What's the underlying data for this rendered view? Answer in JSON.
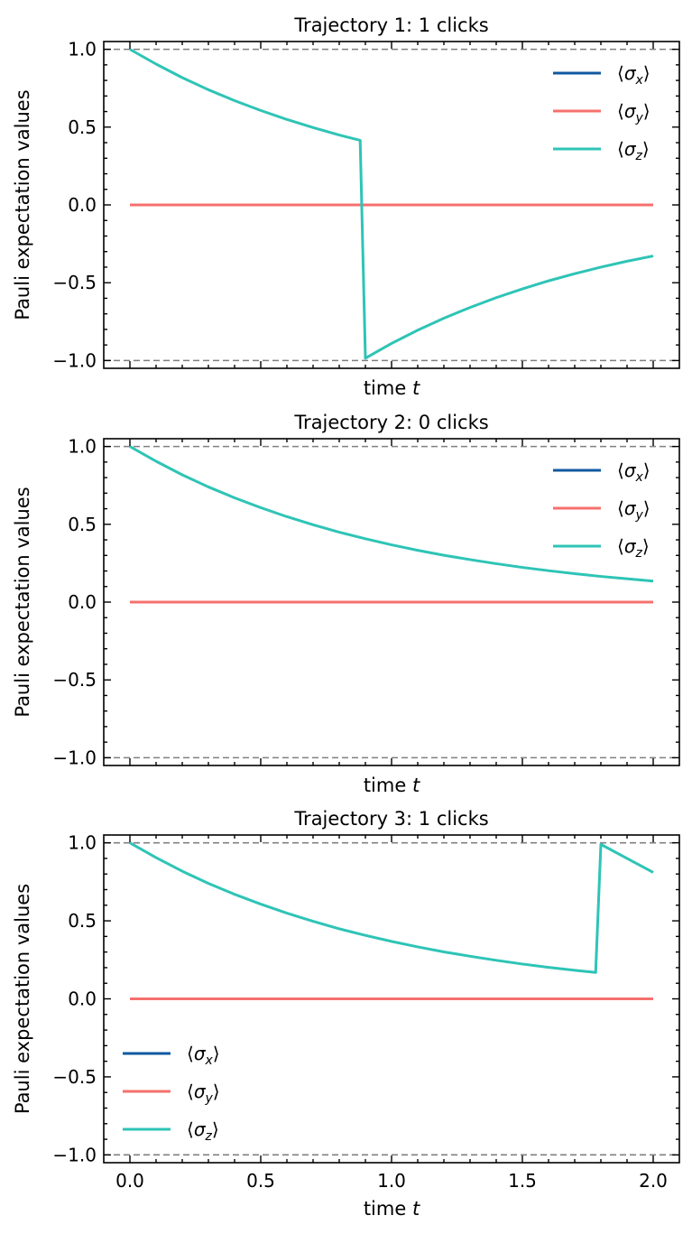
{
  "chart_data": [
    {
      "type": "line",
      "title": "Trajectory 1: 1 clicks",
      "xlabel": "time t",
      "ylabel": "Pauli expectation values",
      "xlim": [
        -0.1,
        2.1
      ],
      "ylim": [
        -1.05,
        1.05
      ],
      "xticks": [
        "0.0",
        "0.5",
        "1.0",
        "1.5",
        "2.0"
      ],
      "yticks": [
        "−1.0",
        "−0.5",
        "0.0",
        "0.5",
        "1.0"
      ],
      "show_xtick_labels": false,
      "reference_lines": [
        1.0,
        -1.0
      ],
      "legend_position": "upper right",
      "series": [
        {
          "name": "⟨σx⟩",
          "color": "#1059a1",
          "x": [
            0.0,
            2.0
          ],
          "y": [
            0.0,
            0.0
          ]
        },
        {
          "name": "⟨σy⟩",
          "color": "#f5706e",
          "x": [
            0.0,
            2.0
          ],
          "y": [
            0.0,
            0.0
          ]
        },
        {
          "name": "⟨σz⟩",
          "color": "#2ec4b6",
          "x": [
            0.0,
            0.1,
            0.2,
            0.3,
            0.4,
            0.5,
            0.6,
            0.7,
            0.8,
            0.88,
            0.9,
            1.0,
            1.1,
            1.2,
            1.3,
            1.4,
            1.5,
            1.6,
            1.7,
            1.8,
            1.9,
            2.0
          ],
          "y": [
            1.0,
            0.905,
            0.818,
            0.74,
            0.67,
            0.607,
            0.549,
            0.497,
            0.449,
            0.415,
            -0.985,
            -0.89,
            -0.805,
            -0.728,
            -0.659,
            -0.596,
            -0.54,
            -0.488,
            -0.442,
            -0.4,
            -0.362,
            -0.328
          ]
        }
      ]
    },
    {
      "type": "line",
      "title": "Trajectory 2: 0 clicks",
      "xlabel": "time t",
      "ylabel": "Pauli expectation values",
      "xlim": [
        -0.1,
        2.1
      ],
      "ylim": [
        -1.05,
        1.05
      ],
      "xticks": [
        "0.0",
        "0.5",
        "1.0",
        "1.5",
        "2.0"
      ],
      "yticks": [
        "−1.0",
        "−0.5",
        "0.0",
        "0.5",
        "1.0"
      ],
      "show_xtick_labels": false,
      "reference_lines": [
        1.0,
        -1.0
      ],
      "legend_position": "upper right",
      "series": [
        {
          "name": "⟨σx⟩",
          "color": "#1059a1",
          "x": [
            0.0,
            2.0
          ],
          "y": [
            0.0,
            0.0
          ]
        },
        {
          "name": "⟨σy⟩",
          "color": "#f5706e",
          "x": [
            0.0,
            2.0
          ],
          "y": [
            0.0,
            0.0
          ]
        },
        {
          "name": "⟨σz⟩",
          "color": "#2ec4b6",
          "x": [
            0.0,
            0.1,
            0.2,
            0.3,
            0.4,
            0.5,
            0.6,
            0.7,
            0.8,
            0.9,
            1.0,
            1.1,
            1.2,
            1.3,
            1.4,
            1.5,
            1.6,
            1.7,
            1.8,
            1.9,
            2.0
          ],
          "y": [
            1.0,
            0.905,
            0.818,
            0.74,
            0.67,
            0.607,
            0.549,
            0.497,
            0.449,
            0.407,
            0.368,
            0.333,
            0.301,
            0.273,
            0.247,
            0.223,
            0.202,
            0.183,
            0.165,
            0.15,
            0.135
          ]
        }
      ]
    },
    {
      "type": "line",
      "title": "Trajectory 3: 1 clicks",
      "xlabel": "time t",
      "ylabel": "Pauli expectation values",
      "xlim": [
        -0.1,
        2.1
      ],
      "ylim": [
        -1.05,
        1.05
      ],
      "xticks": [
        "0.0",
        "0.5",
        "1.0",
        "1.5",
        "2.0"
      ],
      "yticks": [
        "−1.0",
        "−0.5",
        "0.0",
        "0.5",
        "1.0"
      ],
      "show_xtick_labels": true,
      "reference_lines": [
        1.0,
        -1.0
      ],
      "legend_position": "lower left",
      "series": [
        {
          "name": "⟨σx⟩",
          "color": "#1059a1",
          "x": [
            0.0,
            2.0
          ],
          "y": [
            0.0,
            0.0
          ]
        },
        {
          "name": "⟨σy⟩",
          "color": "#f5706e",
          "x": [
            0.0,
            2.0
          ],
          "y": [
            0.0,
            0.0
          ]
        },
        {
          "name": "⟨σz⟩",
          "color": "#2ec4b6",
          "x": [
            0.0,
            0.1,
            0.2,
            0.3,
            0.4,
            0.5,
            0.6,
            0.7,
            0.8,
            0.9,
            1.0,
            1.1,
            1.2,
            1.3,
            1.4,
            1.5,
            1.6,
            1.7,
            1.78,
            1.8,
            1.9,
            2.0
          ],
          "y": [
            1.0,
            0.905,
            0.818,
            0.74,
            0.67,
            0.607,
            0.549,
            0.497,
            0.449,
            0.407,
            0.368,
            0.333,
            0.301,
            0.273,
            0.247,
            0.223,
            0.202,
            0.183,
            0.169,
            0.99,
            0.9,
            0.81
          ]
        }
      ]
    }
  ]
}
